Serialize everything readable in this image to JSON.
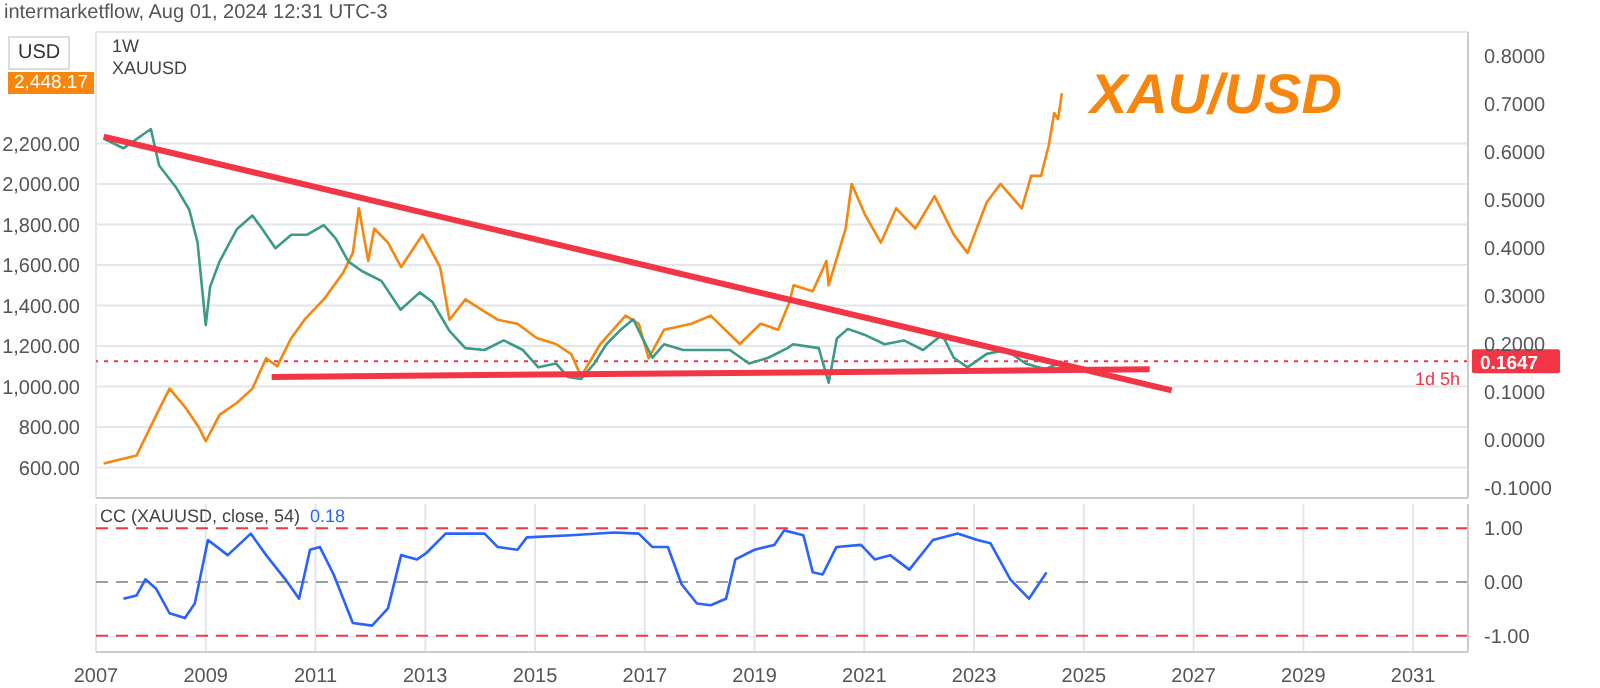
{
  "chart_data": [
    {
      "type": "line",
      "ylabel": "USD",
      "xlim": [
        2007,
        2032
      ],
      "xticks": [
        2007,
        2009,
        2011,
        2013,
        2015,
        2017,
        2019,
        2021,
        2023,
        2025,
        2027,
        2029,
        2031
      ],
      "tick_labels": "y",
      "grid": true,
      "ylim": [
        450,
        2750
      ],
      "yticks": [
        {
          "value": 600,
          "label": "600.00"
        },
        {
          "value": 800,
          "label": "800.00"
        },
        {
          "value": 1000,
          "label": "1,000.00"
        },
        {
          "value": 1200,
          "label": "1,200.00"
        },
        {
          "value": 1400,
          "label": "1,400.00"
        },
        {
          "value": 1600,
          "label": "1,600.00"
        },
        {
          "value": 1800,
          "label": "1,800.00"
        },
        {
          "value": 2000,
          "label": "2,000.00"
        },
        {
          "value": 2200,
          "label": "2,200.00"
        }
      ],
      "y2lim": [
        -0.12,
        0.85
      ],
      "y2ticks": [
        {
          "value": -0.1,
          "label": "-0.1000"
        },
        {
          "value": 0,
          "label": "0.0000"
        },
        {
          "value": 0.1,
          "label": "0.1000"
        },
        {
          "value": 0.2,
          "label": "0.2000"
        },
        {
          "value": 0.3,
          "label": "0.3000"
        },
        {
          "value": 0.4,
          "label": "0.4000"
        },
        {
          "value": 0.5,
          "label": "0.5000"
        },
        {
          "value": 0.6,
          "label": "0.6000"
        },
        {
          "value": 0.7,
          "label": "0.7000"
        },
        {
          "value": 0.8,
          "label": "0.8000"
        }
      ],
      "series": [
        {
          "name": "XAU/USD",
          "color": "#f7860f",
          "x": [
            2007.14,
            2007.74,
            2008.1,
            2008.34,
            2008.62,
            2008.87,
            2009.0,
            2009.25,
            2009.57,
            2009.85,
            2010.1,
            2010.3,
            2010.56,
            2010.8,
            2011.15,
            2011.5,
            2011.68,
            2011.79,
            2011.96,
            2012.07,
            2012.32,
            2012.56,
            2012.95,
            2013.27,
            2013.44,
            2013.73,
            2014.08,
            2014.32,
            2014.68,
            2015.03,
            2015.38,
            2015.66,
            2015.84,
            2016.19,
            2016.65,
            2016.89,
            2017.07,
            2017.35,
            2017.85,
            2018.2,
            2018.73,
            2019.11,
            2019.43,
            2019.64,
            2019.71,
            2020.06,
            2020.31,
            2020.35,
            2020.66,
            2020.77,
            2021.01,
            2021.3,
            2021.58,
            2021.93,
            2022.28,
            2022.63,
            2022.88,
            2023.23,
            2023.48,
            2023.87,
            2024.04,
            2024.22,
            2024.36,
            2024.46,
            2024.53,
            2024.6
          ],
          "values": [
            620,
            660,
            860,
            990,
            900,
            800,
            730,
            860,
            920,
            990,
            1140,
            1100,
            1240,
            1330,
            1430,
            1560,
            1660,
            1880,
            1620,
            1780,
            1710,
            1590,
            1750,
            1590,
            1330,
            1430,
            1370,
            1330,
            1310,
            1240,
            1210,
            1160,
            1050,
            1210,
            1350,
            1310,
            1140,
            1280,
            1310,
            1350,
            1210,
            1310,
            1280,
            1420,
            1500,
            1470,
            1620,
            1500,
            1780,
            2000,
            1850,
            1710,
            1880,
            1780,
            1940,
            1750,
            1660,
            1910,
            2000,
            1880,
            2040,
            2040,
            2190,
            2350,
            2320,
            2448.17
          ]
        },
        {
          "color": "#3d9a86",
          "axis": "y2",
          "x": [
            2007.14,
            2007.5,
            2007.8,
            2008.0,
            2008.15,
            2008.45,
            2008.7,
            2008.85,
            2009.0,
            2009.08,
            2009.25,
            2009.57,
            2009.85,
            2010.03,
            2010.27,
            2010.56,
            2010.85,
            2011.15,
            2011.37,
            2011.6,
            2011.85,
            2012.2,
            2012.55,
            2012.9,
            2013.13,
            2013.44,
            2013.73,
            2014.08,
            2014.43,
            2014.78,
            2015.06,
            2015.38,
            2015.6,
            2015.84,
            2016.08,
            2016.3,
            2016.54,
            2016.79,
            2016.96,
            2017.14,
            2017.35,
            2017.7,
            2018.2,
            2018.55,
            2018.9,
            2019.25,
            2019.6,
            2019.7,
            2020.17,
            2020.35,
            2020.5,
            2020.7,
            2021.0,
            2021.37,
            2021.72,
            2022.07,
            2022.42,
            2022.63,
            2022.88,
            2023.23,
            2023.58,
            2023.94,
            2024.3,
            2024.53,
            2024.6
          ],
          "values": [
            0.628,
            0.608,
            0.632,
            0.648,
            0.572,
            0.528,
            0.48,
            0.412,
            0.24,
            0.32,
            0.372,
            0.44,
            0.468,
            0.44,
            0.4,
            0.428,
            0.428,
            0.448,
            0.42,
            0.372,
            0.352,
            0.332,
            0.272,
            0.308,
            0.288,
            0.228,
            0.192,
            0.188,
            0.208,
            0.188,
            0.152,
            0.16,
            0.132,
            0.128,
            0.16,
            0.2,
            0.228,
            0.252,
            0.212,
            0.172,
            0.2,
            0.188,
            0.188,
            0.188,
            0.16,
            0.172,
            0.192,
            0.2,
            0.192,
            0.12,
            0.212,
            0.232,
            0.22,
            0.2,
            0.208,
            0.188,
            0.22,
            0.172,
            0.152,
            0.18,
            0.188,
            0.16,
            0.148,
            0.16,
            0.1647
          ]
        },
        {
          "color": "#f23645",
          "axis": "y2",
          "x": [
            2007.14,
            2026.6
          ],
          "values": [
            0.632,
            0.104
          ]
        },
        {
          "color": "#f23645",
          "axis": "y2",
          "x": [
            2010.2,
            2026.2
          ],
          "values": [
            0.132,
            0.148
          ]
        }
      ],
      "ref_lines": [
        {
          "axis": "y2",
          "value": 0.1647,
          "label": "0.1647",
          "color": "#f23645",
          "line_style": "dotted"
        }
      ],
      "annotations": [
        "intermarketflow, Aug 01, 2024 12:31 UTC-3",
        "1W",
        "XAUUSD",
        "2,448.17",
        "1d 5h"
      ]
    },
    {
      "type": "line",
      "title": "CC (XAUUSD, close, 54)",
      "xlim": [
        2007,
        2032
      ],
      "xticks": [
        2007,
        2009,
        2011,
        2013,
        2015,
        2017,
        2019,
        2021,
        2023,
        2025,
        2027,
        2029,
        2031
      ],
      "grid": "x",
      "y2lim": [
        -1.3,
        1.45
      ],
      "y2ticks": [
        {
          "value": -1,
          "label": "-1.00"
        },
        {
          "value": 0,
          "label": "0.00"
        },
        {
          "value": 1,
          "label": "1.00"
        }
      ],
      "series": [
        {
          "color": "#2962ff",
          "axis": "y2",
          "x": [
            2007.5,
            2007.74,
            2007.9,
            2008.1,
            2008.34,
            2008.62,
            2008.8,
            2009.04,
            2009.4,
            2009.82,
            2010.1,
            2010.45,
            2010.7,
            2010.9,
            2011.08,
            2011.33,
            2011.68,
            2012.03,
            2012.32,
            2012.56,
            2012.85,
            2013.02,
            2013.37,
            2014.08,
            2014.32,
            2014.68,
            2014.85,
            2015.66,
            2016.44,
            2016.89,
            2017.14,
            2017.42,
            2017.67,
            2017.95,
            2018.2,
            2018.48,
            2018.65,
            2019.0,
            2019.36,
            2019.54,
            2019.89,
            2020.06,
            2020.24,
            2020.49,
            2020.94,
            2021.19,
            2021.47,
            2021.82,
            2022.25,
            2022.7,
            2023.06,
            2023.3,
            2023.66,
            2024.0,
            2024.32
          ],
          "values": [
            -0.31,
            -0.25,
            0.05,
            -0.13,
            -0.58,
            -0.67,
            -0.4,
            0.78,
            0.5,
            0.9,
            0.5,
            0.05,
            -0.31,
            0.6,
            0.65,
            0.14,
            -0.76,
            -0.81,
            -0.49,
            0.5,
            0.42,
            0.54,
            0.9,
            0.9,
            0.65,
            0.6,
            0.83,
            0.87,
            0.92,
            0.9,
            0.65,
            0.65,
            -0.04,
            -0.4,
            -0.43,
            -0.31,
            0.42,
            0.6,
            0.69,
            0.96,
            0.87,
            0.18,
            0.14,
            0.65,
            0.69,
            0.42,
            0.5,
            0.23,
            0.78,
            0.9,
            0.78,
            0.72,
            0.05,
            -0.31,
            0.18
          ]
        }
      ],
      "ref_lines": [
        {
          "axis": "y2",
          "value": 1,
          "color": "#f23645",
          "line_style": "dashed"
        },
        {
          "axis": "y2",
          "value": 0,
          "color": "#9e9e9e",
          "line_style": "dashed"
        },
        {
          "axis": "y2",
          "value": -1,
          "color": "#f23645",
          "line_style": "dashed"
        }
      ],
      "annotations": [
        "0.18"
      ]
    }
  ]
}
